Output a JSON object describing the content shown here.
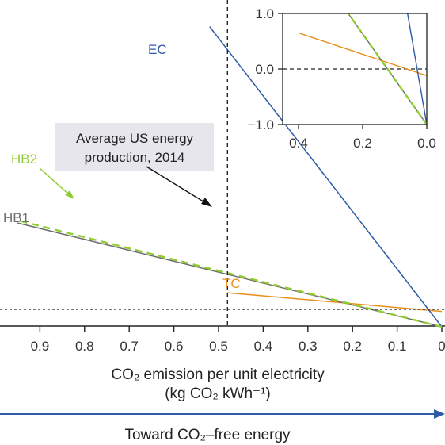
{
  "chart_data": [
    {
      "id": "main",
      "type": "line",
      "xlabel_line1": "CO₂ emission per unit electricity",
      "xlabel_line2": "(kg CO₂ kWh⁻¹)",
      "x_ticks": [
        0.9,
        0.8,
        0.7,
        0.6,
        0.5,
        0.4,
        0.3,
        0.2,
        0.1,
        0
      ],
      "x_tick_labels": [
        "0.9",
        "0.8",
        "0.7",
        "0.6",
        "0.5",
        "0.4",
        "0.3",
        "0.2",
        "0.1",
        "0"
      ],
      "xlim": [
        0.95,
        0.0
      ],
      "series": [
        {
          "name": "EC",
          "color": "#2e5aa8",
          "x": [
            0.0,
            0.52
          ],
          "y": [
            -1.0,
            16.2
          ]
        },
        {
          "name": "HB1",
          "color": "#6e6e6e",
          "x": [
            0.0,
            0.95
          ],
          "y": [
            -1.0,
            4.95
          ]
        },
        {
          "name": "HB2",
          "color": "#8fce2e",
          "dashed": true,
          "x": [
            0.0,
            0.95
          ],
          "y": [
            -1.0,
            5.1
          ]
        },
        {
          "name": "TC",
          "color": "#e8901a",
          "x": [
            0.0,
            0.48
          ],
          "y": [
            -0.12,
            0.95
          ]
        }
      ],
      "reference_lines": {
        "vertical_x": 0.48,
        "horizontal_y": 0.0
      },
      "annotation": "Average US energy production, 2014",
      "annotation_lines": [
        "Average US energy",
        "production, 2014"
      ],
      "direction_label": "Toward CO₂–free energy",
      "direction_color": "#2e5aa8"
    },
    {
      "id": "inset",
      "type": "line",
      "x_ticks": [
        0.4,
        0.2,
        0.0
      ],
      "x_tick_labels": [
        "0.4",
        "0.2",
        "0.0"
      ],
      "y_ticks": [
        1.0,
        0.0,
        -1.0
      ],
      "y_tick_labels": [
        "1.0",
        "0.0",
        "−1.0"
      ],
      "xlim": [
        0.4,
        0.0
      ],
      "ylim": [
        -1.0,
        1.0
      ],
      "series": [
        {
          "name": "EC",
          "color": "#2e5aa8",
          "x": [
            0.0,
            0.06
          ],
          "y": [
            -1.0,
            1.0
          ]
        },
        {
          "name": "HB1",
          "color": "#6e6e6e",
          "x": [
            0.0,
            0.245
          ],
          "y": [
            -1.0,
            1.0
          ]
        },
        {
          "name": "HB2",
          "color": "#8fce2e",
          "dashed": true,
          "x": [
            0.0,
            0.245
          ],
          "y": [
            -1.0,
            1.0
          ]
        },
        {
          "name": "TC",
          "color": "#e8901a",
          "x": [
            0.0,
            0.4
          ],
          "y": [
            -0.12,
            0.65
          ]
        }
      ],
      "reference_lines": {
        "horizontal_y": 0.0
      }
    }
  ]
}
